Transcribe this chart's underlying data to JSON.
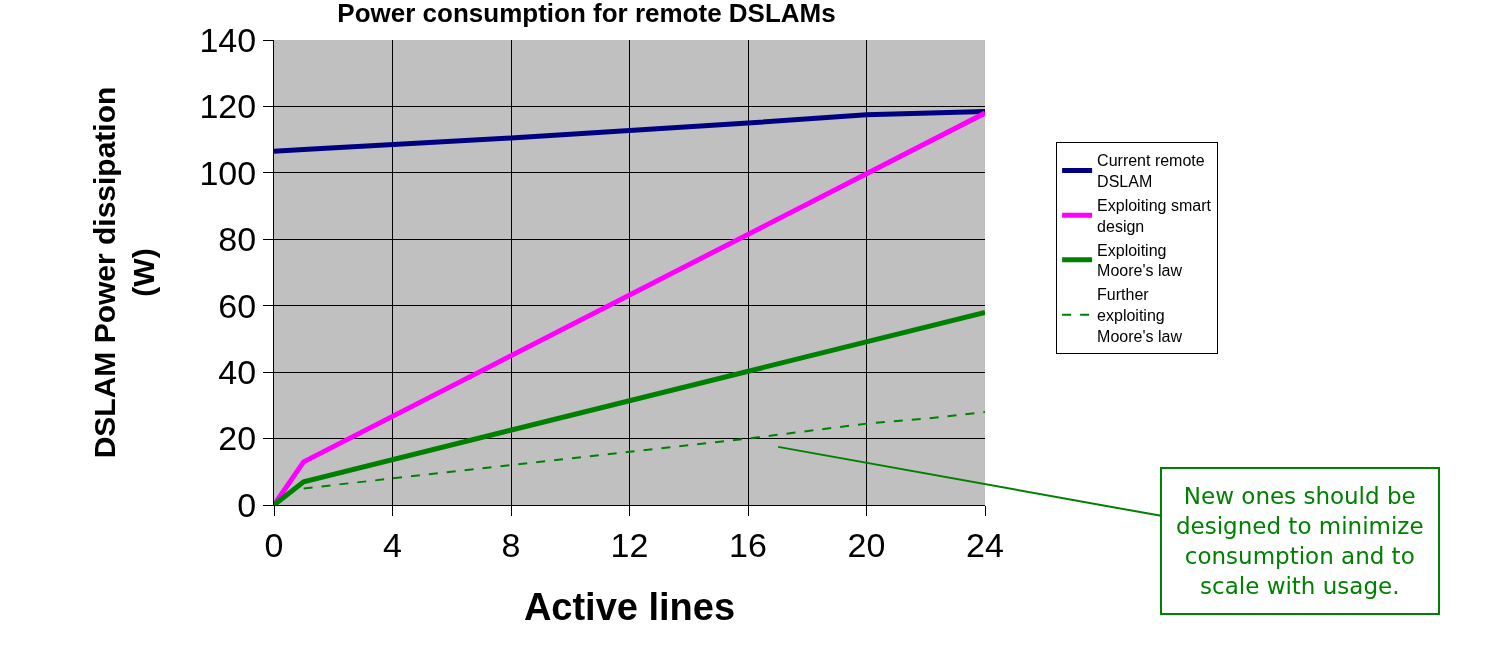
{
  "chart_data": {
    "type": "line",
    "title": "Power consumption for remote DSLAMs",
    "xlabel": "Active lines",
    "ylabel": "DSLAM Power dissipation (W)",
    "xlim": [
      0,
      24
    ],
    "xticks": [
      0,
      4,
      8,
      12,
      16,
      20,
      24
    ],
    "ylim": [
      0,
      140
    ],
    "yticks": [
      0,
      20,
      40,
      60,
      80,
      100,
      120,
      140
    ],
    "grid": true,
    "legend": "right",
    "marker": "none",
    "series": [
      {
        "name": "Current remote DSLAM",
        "color": "#000080",
        "x": [
          0,
          1,
          8,
          16,
          20,
          24
        ],
        "values": [
          106.5,
          107,
          110.5,
          115,
          117.5,
          118.5
        ]
      },
      {
        "name": "Exploiting smart design",
        "color": "#ff00ff",
        "x": [
          0,
          1,
          24
        ],
        "values": [
          0,
          13,
          118
        ]
      },
      {
        "name": "Exploiting Moore's law",
        "color": "#008000",
        "x": [
          0,
          1,
          24
        ],
        "values": [
          0,
          7,
          58
        ]
      },
      {
        "name": "Further exploiting Moore's law",
        "color": "#008000",
        "line_style": "dashed",
        "x": [
          1,
          4,
          8,
          12,
          16,
          20,
          22,
          24
        ],
        "values": [
          5,
          8,
          12,
          16,
          20,
          24.5,
          26,
          28
        ]
      }
    ],
    "annotations": [
      "New ones should be designed to minimize consumption and to scale with usage."
    ]
  }
}
